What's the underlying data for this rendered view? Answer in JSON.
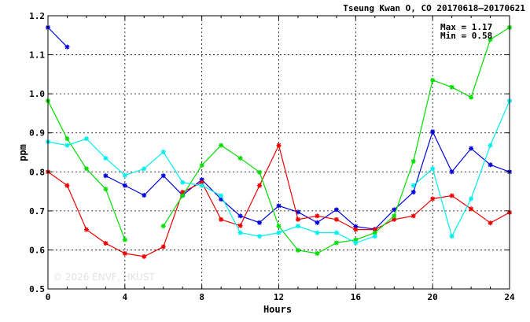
{
  "header": {
    "title": "Tseung Kwan O, CO 20170618–20170621"
  },
  "stats": {
    "max_text": "Max = 1.17",
    "min_text": "Min = 0.58"
  },
  "watermark": "© 2026  ENVF, HKUST",
  "chart_data": {
    "type": "line",
    "title": "Tseung Kwan O, CO 20170618–20170621",
    "xlabel": "Hours",
    "ylabel": "ppm",
    "xlim": [
      0,
      24
    ],
    "ylim": [
      0.5,
      1.2
    ],
    "xticks": [
      0,
      4,
      8,
      12,
      16,
      20,
      24
    ],
    "xtick_labels": [
      "0",
      "4",
      "8",
      "12",
      "16",
      "20",
      "24"
    ],
    "yticks": [
      0.5,
      0.6,
      0.7,
      0.8,
      0.9,
      1.0,
      1.1,
      1.2
    ],
    "ytick_labels": [
      "0.5",
      "0.6",
      "0.7",
      "0.8",
      "0.9",
      "1.0",
      "1.1",
      "1.2"
    ],
    "grid": true,
    "x": [
      0,
      1,
      2,
      3,
      4,
      5,
      6,
      7,
      8,
      9,
      10,
      11,
      12,
      13,
      14,
      15,
      16,
      17,
      18,
      19,
      20,
      21,
      22,
      23,
      24
    ],
    "series": [
      {
        "color": "#0000dd",
        "values": [
          1.17,
          1.12,
          null,
          0.79,
          0.765,
          0.74,
          0.79,
          0.74,
          0.78,
          0.73,
          0.687,
          0.67,
          0.713,
          0.697,
          0.67,
          0.703,
          0.66,
          0.653,
          0.703,
          0.748,
          0.903,
          0.8,
          0.86,
          0.818,
          0.8
        ]
      },
      {
        "color": "#ee0000",
        "values": [
          0.8,
          0.765,
          0.652,
          0.617,
          0.591,
          0.583,
          0.608,
          0.748,
          0.773,
          0.678,
          0.662,
          0.765,
          0.868,
          0.678,
          0.687,
          0.678,
          0.652,
          0.652,
          0.678,
          0.687,
          0.731,
          0.739,
          0.705,
          0.669,
          0.696
        ]
      },
      {
        "color": "#00dd00",
        "values": [
          0.982,
          0.885,
          0.808,
          0.756,
          0.626,
          null,
          0.661,
          0.739,
          0.817,
          0.868,
          0.835,
          0.799,
          0.661,
          0.599,
          0.591,
          0.618,
          0.626,
          0.644,
          0.687,
          0.827,
          1.035,
          1.017,
          0.991,
          1.139,
          1.17
        ]
      },
      {
        "color": "#00eeee",
        "values": [
          0.877,
          0.868,
          0.885,
          0.835,
          0.791,
          0.808,
          0.851,
          0.773,
          0.765,
          0.739,
          0.644,
          0.635,
          0.644,
          0.661,
          0.644,
          0.644,
          0.618,
          0.635,
          null,
          0.765,
          0.808,
          0.635,
          0.731,
          0.868,
          0.982
        ]
      }
    ]
  }
}
